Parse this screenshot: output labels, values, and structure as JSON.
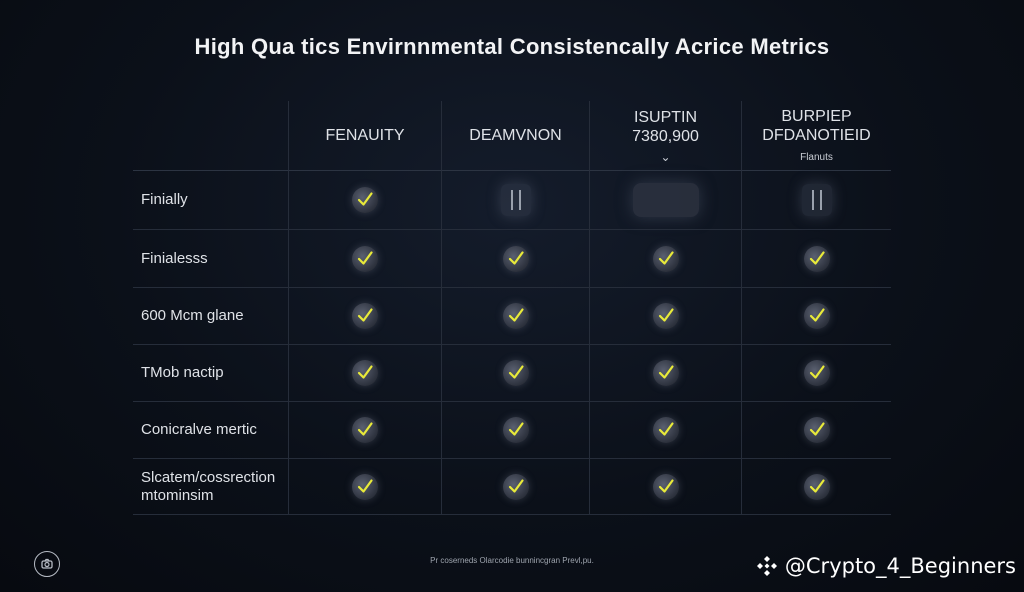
{
  "title": "High Qua tics Envirnnmental Consistencally Acrice Metrics",
  "columns": [
    {
      "label": "",
      "sub": ""
    },
    {
      "label": "FENAUITY",
      "sub": ""
    },
    {
      "label": "DEAMVNON",
      "sub": ""
    },
    {
      "label": "ISUPTIN\n7380,900",
      "sub": "⌄"
    },
    {
      "label": "BURPIEP\nDFDANOTIEID",
      "sub": "Flanuts"
    }
  ],
  "rows": [
    {
      "label": "Finially",
      "cells": [
        "check",
        "pause",
        "blank",
        "pause"
      ]
    },
    {
      "label": "Finialesss",
      "cells": [
        "check",
        "check",
        "check",
        "check"
      ]
    },
    {
      "label": "600 Mcm glane",
      "cells": [
        "check",
        "check",
        "check",
        "check"
      ]
    },
    {
      "label": "TMob nactip",
      "cells": [
        "check",
        "check",
        "check",
        "check"
      ]
    },
    {
      "label": "Conicralve mertic",
      "cells": [
        "check",
        "check",
        "check",
        "check"
      ]
    },
    {
      "label": "Slcatem/cossrection\nmtominsim",
      "cells": [
        "check",
        "check",
        "check",
        "check"
      ]
    }
  ],
  "footnote": "Pr coserneds Olarcodie bunnincgran Prevl,pu.",
  "watermark": "@Crypto_4_Beginners",
  "colors": {
    "check": "#e8ea3a",
    "background": "#0b1019",
    "grid_line": "#262d3a"
  }
}
